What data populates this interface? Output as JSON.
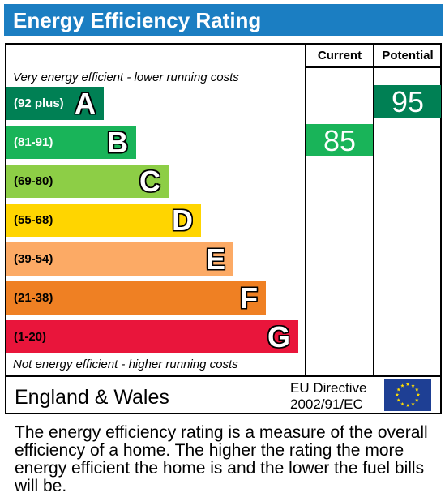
{
  "title": "Energy Efficiency Rating",
  "columns": {
    "current": "Current",
    "potential": "Potential"
  },
  "top_note": "Very energy efficient - lower running costs",
  "bottom_note": "Not energy efficient - higher running costs",
  "region": "England & Wales",
  "directive": {
    "line1": "EU Directive",
    "line2": "2002/91/EC"
  },
  "footer": "The energy efficiency rating is a measure of the overall efficiency of a home. The higher the rating the more energy efficient the home is and the lower the fuel bills will be.",
  "chart_data": {
    "type": "bar",
    "title": "Energy Efficiency Rating",
    "bands": [
      {
        "letter": "A",
        "range": "(92 plus)",
        "min": 92,
        "max": null,
        "color": "#008054",
        "range_text_color": "#ffffff"
      },
      {
        "letter": "B",
        "range": "(81-91)",
        "min": 81,
        "max": 91,
        "color": "#19b459",
        "range_text_color": "#ffffff"
      },
      {
        "letter": "C",
        "range": "(69-80)",
        "min": 69,
        "max": 80,
        "color": "#8dce46",
        "range_text_color": "#000000"
      },
      {
        "letter": "D",
        "range": "(55-68)",
        "min": 55,
        "max": 68,
        "color": "#ffd500",
        "range_text_color": "#000000"
      },
      {
        "letter": "E",
        "range": "(39-54)",
        "min": 39,
        "max": 54,
        "color": "#fcaa65",
        "range_text_color": "#000000"
      },
      {
        "letter": "F",
        "range": "(21-38)",
        "min": 21,
        "max": 38,
        "color": "#ef8023",
        "range_text_color": "#000000"
      },
      {
        "letter": "G",
        "range": "(1-20)",
        "min": 1,
        "max": 20,
        "color": "#e9153b",
        "range_text_color": "#000000"
      }
    ],
    "ratings": [
      {
        "column": "Current",
        "value": 85,
        "band": "B",
        "color": "#19b459"
      },
      {
        "column": "Potential",
        "value": 95,
        "band": "A",
        "color": "#008054"
      }
    ]
  }
}
